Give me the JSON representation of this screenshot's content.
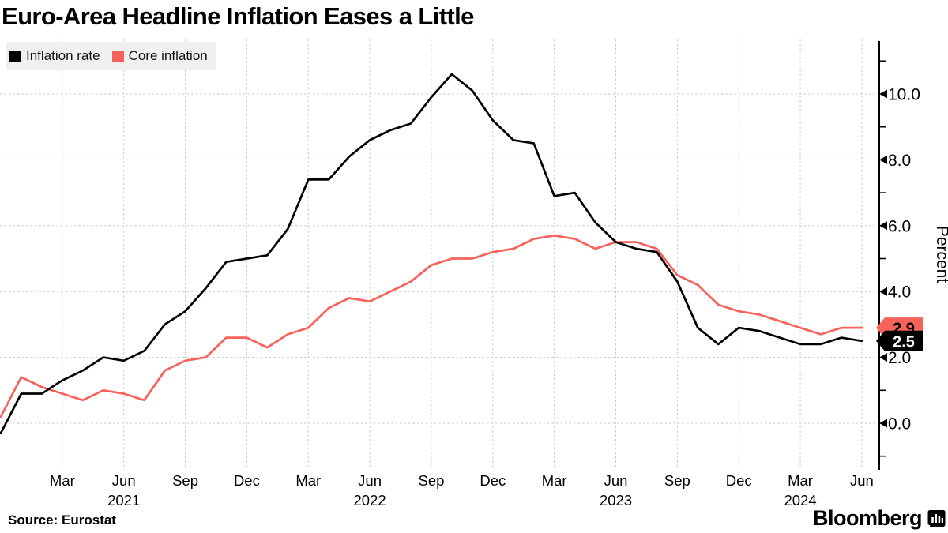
{
  "title": "Euro-Area Headline Inflation Eases a Little",
  "source": "Source: Eurostat",
  "brand": {
    "name": "Bloomberg"
  },
  "legend": {
    "items": [
      {
        "label": "Inflation rate",
        "color": "#000000"
      },
      {
        "label": "Core inflation",
        "color": "#f8625c"
      }
    ]
  },
  "chart_data": {
    "type": "line",
    "title": "Euro-Area Headline Inflation Eases a Little",
    "ylabel": "Percent",
    "ylim": [
      -1.6,
      11.6
    ],
    "grid": true,
    "legend_position": "top-left",
    "x": [
      "2020-12",
      "2021-01",
      "2021-02",
      "2021-03",
      "2021-04",
      "2021-05",
      "2021-06",
      "2021-07",
      "2021-08",
      "2021-09",
      "2021-10",
      "2021-11",
      "2021-12",
      "2022-01",
      "2022-02",
      "2022-03",
      "2022-04",
      "2022-05",
      "2022-06",
      "2022-07",
      "2022-08",
      "2022-09",
      "2022-10",
      "2022-11",
      "2022-12",
      "2023-01",
      "2023-02",
      "2023-03",
      "2023-04",
      "2023-05",
      "2023-06",
      "2023-07",
      "2023-08",
      "2023-09",
      "2023-10",
      "2023-11",
      "2023-12",
      "2024-01",
      "2024-02",
      "2024-03",
      "2024-04",
      "2024-05",
      "2024-06"
    ],
    "series": [
      {
        "name": "Inflation rate",
        "color": "#000000",
        "values": [
          -0.3,
          0.9,
          0.9,
          1.3,
          1.6,
          2.0,
          1.9,
          2.2,
          3.0,
          3.4,
          4.1,
          4.9,
          5.0,
          5.1,
          5.9,
          7.4,
          7.4,
          8.1,
          8.6,
          8.9,
          9.1,
          9.9,
          10.6,
          10.1,
          9.2,
          8.6,
          8.5,
          6.9,
          7.0,
          6.1,
          5.5,
          5.3,
          5.2,
          4.3,
          2.9,
          2.4,
          2.9,
          2.8,
          2.6,
          2.4,
          2.4,
          2.6,
          2.5
        ]
      },
      {
        "name": "Core inflation",
        "color": "#f8625c",
        "values": [
          0.2,
          1.4,
          1.1,
          0.9,
          0.7,
          1.0,
          0.9,
          0.7,
          1.6,
          1.9,
          2.0,
          2.6,
          2.6,
          2.3,
          2.7,
          2.9,
          3.5,
          3.8,
          3.7,
          4.0,
          4.3,
          4.8,
          5.0,
          5.0,
          5.2,
          5.3,
          5.6,
          5.7,
          5.6,
          5.3,
          5.5,
          5.5,
          5.3,
          4.5,
          4.2,
          3.6,
          3.4,
          3.3,
          3.1,
          2.9,
          2.7,
          2.9,
          2.9
        ]
      }
    ],
    "y_major_ticks": [
      0,
      2,
      4,
      6,
      8,
      10
    ],
    "y_minor_ticks": [
      -1,
      1,
      3,
      5,
      7,
      9,
      11
    ],
    "y_tick_labels": [
      "0.0",
      "2.0",
      "4.0",
      "6.0",
      "8.0",
      "10.0"
    ],
    "x_ticks": [
      {
        "i": 3,
        "label": "Mar"
      },
      {
        "i": 6,
        "label": "Jun",
        "year": "2021"
      },
      {
        "i": 9,
        "label": "Sep"
      },
      {
        "i": 12,
        "label": "Dec"
      },
      {
        "i": 15,
        "label": "Mar"
      },
      {
        "i": 18,
        "label": "Jun",
        "year": "2022"
      },
      {
        "i": 21,
        "label": "Sep"
      },
      {
        "i": 24,
        "label": "Dec"
      },
      {
        "i": 27,
        "label": "Mar"
      },
      {
        "i": 30,
        "label": "Jun",
        "year": "2023"
      },
      {
        "i": 33,
        "label": "Sep"
      },
      {
        "i": 36,
        "label": "Dec"
      },
      {
        "i": 39,
        "label": "Mar",
        "year": "2024"
      },
      {
        "i": 42,
        "label": "Jun"
      }
    ],
    "end_labels": [
      {
        "series": "Core inflation",
        "text": "2.9",
        "value": 2.9,
        "bg": "#f8625c",
        "text_color": "#000000"
      },
      {
        "series": "Inflation rate",
        "text": "2.5",
        "value": 2.5,
        "bg": "#000000",
        "text_color": "#ffffff"
      }
    ]
  }
}
